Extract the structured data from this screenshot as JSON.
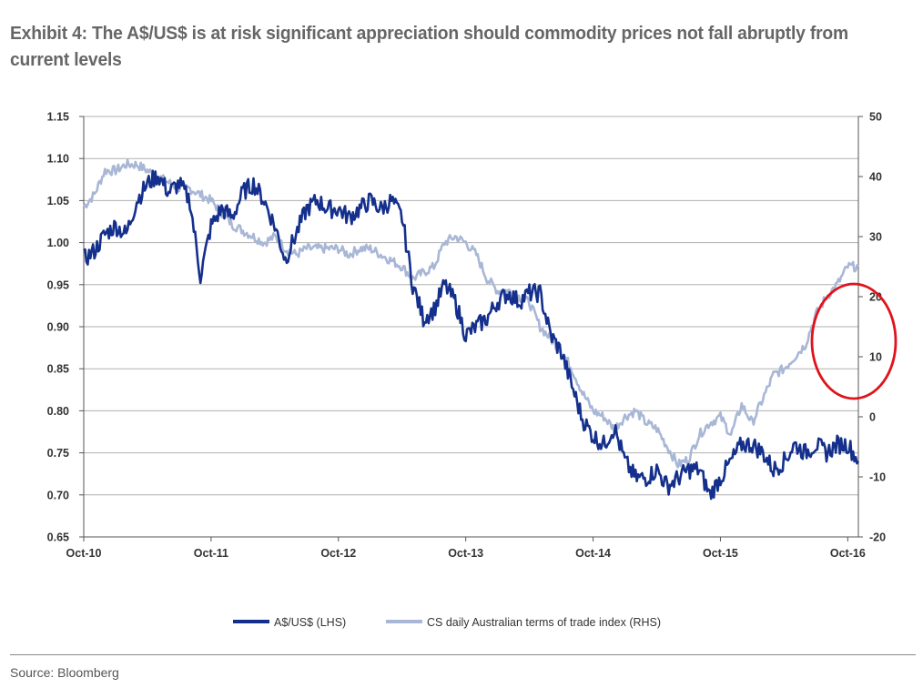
{
  "title": "Exhibit 4: The A$/US$ is at risk significant appreciation should commodity prices not fall abruptly from current levels",
  "source": "Source: Bloomberg",
  "colors": {
    "aud": "#14308c",
    "tot": "#a9b7d6",
    "grid": "#b0b0b0",
    "axis": "#555555",
    "highlight": "#e0131b"
  },
  "chart_data": {
    "type": "line",
    "x_label_positions": [
      0,
      12,
      24,
      36,
      48,
      60,
      72
    ],
    "xticks": [
      "Oct-10",
      "Oct-11",
      "Oct-12",
      "Oct-13",
      "Oct-14",
      "Oct-15",
      "Oct-16"
    ],
    "xlim_months": [
      0,
      73
    ],
    "y_left": {
      "range": [
        0.65,
        1.15
      ],
      "ticks": [
        "1.15",
        "1.10",
        "1.05",
        "1.00",
        "0.95",
        "0.90",
        "0.85",
        "0.80",
        "0.75",
        "0.70",
        "0.65"
      ]
    },
    "y_right": {
      "range": [
        -20,
        50
      ],
      "ticks": [
        "50",
        "40",
        "30",
        "20",
        "10",
        "0",
        "-10",
        "-20"
      ]
    },
    "grid": true,
    "legend_position": "bottom",
    "annotation": "red ellipse highlighting terms of trade spike near Oct-16",
    "series": [
      {
        "name": "A$/US$ (LHS)",
        "axis": "left",
        "x": [
          0,
          1,
          2,
          3,
          4,
          5,
          6,
          7,
          8,
          9,
          10,
          11,
          12,
          13,
          14,
          15,
          16,
          17,
          18,
          19,
          20,
          21,
          22,
          23,
          24,
          25,
          26,
          27,
          28,
          29,
          30,
          31,
          32,
          33,
          34,
          35,
          36,
          37,
          38,
          39,
          40,
          41,
          42,
          43,
          44,
          45,
          46,
          47,
          48,
          49,
          50,
          51,
          52,
          53,
          54,
          55,
          56,
          57,
          58,
          59,
          60,
          61,
          62,
          63,
          64,
          65,
          66,
          67,
          68,
          69,
          70,
          71,
          72,
          73
        ],
        "values": [
          0.98,
          0.99,
          1.01,
          1.02,
          1.01,
          1.05,
          1.07,
          1.08,
          1.06,
          1.07,
          1.05,
          0.96,
          1.02,
          1.04,
          1.03,
          1.06,
          1.07,
          1.05,
          1.02,
          0.98,
          1.01,
          1.04,
          1.05,
          1.04,
          1.04,
          1.03,
          1.04,
          1.05,
          1.04,
          1.05,
          1.03,
          0.95,
          0.91,
          0.92,
          0.95,
          0.93,
          0.89,
          0.9,
          0.91,
          0.93,
          0.94,
          0.93,
          0.94,
          0.94,
          0.89,
          0.87,
          0.83,
          0.79,
          0.77,
          0.76,
          0.78,
          0.74,
          0.72,
          0.72,
          0.73,
          0.71,
          0.72,
          0.73,
          0.73,
          0.7,
          0.72,
          0.74,
          0.76,
          0.76,
          0.75,
          0.73,
          0.74,
          0.76,
          0.75,
          0.76,
          0.75,
          0.76,
          0.76,
          0.74
        ]
      },
      {
        "name": "CS daily Australian terms of trade index (RHS)",
        "axis": "right",
        "x": [
          0,
          1,
          2,
          3,
          4,
          5,
          6,
          7,
          8,
          9,
          10,
          11,
          12,
          13,
          14,
          15,
          16,
          17,
          18,
          19,
          20,
          21,
          22,
          23,
          24,
          25,
          26,
          27,
          28,
          29,
          30,
          31,
          32,
          33,
          34,
          35,
          36,
          37,
          38,
          39,
          40,
          41,
          42,
          43,
          44,
          45,
          46,
          47,
          48,
          49,
          50,
          51,
          52,
          53,
          54,
          55,
          56,
          57,
          58,
          59,
          60,
          61,
          62,
          63,
          64,
          65,
          66,
          67,
          68,
          69,
          70,
          71,
          72,
          73
        ],
        "values": [
          35,
          37,
          41,
          41,
          42,
          42,
          41,
          40,
          39,
          38,
          38,
          37,
          36,
          34,
          32,
          31,
          30,
          29,
          30,
          28,
          27,
          28,
          28,
          28,
          28,
          27,
          28,
          28,
          27,
          26,
          25,
          23,
          24,
          25,
          29,
          30,
          29,
          27,
          23,
          21,
          21,
          20,
          19,
          15,
          13,
          11,
          8,
          4,
          1,
          0,
          -2,
          0,
          1,
          -1,
          -2,
          -5,
          -8,
          -7,
          -3,
          -1,
          0,
          -3,
          2,
          -1,
          3,
          7,
          8,
          10,
          12,
          17,
          20,
          22,
          25,
          25
        ]
      }
    ]
  },
  "legend": {
    "aud_label": "A$/US$ (LHS)",
    "tot_label": "CS daily Australian terms of trade index (RHS)"
  }
}
